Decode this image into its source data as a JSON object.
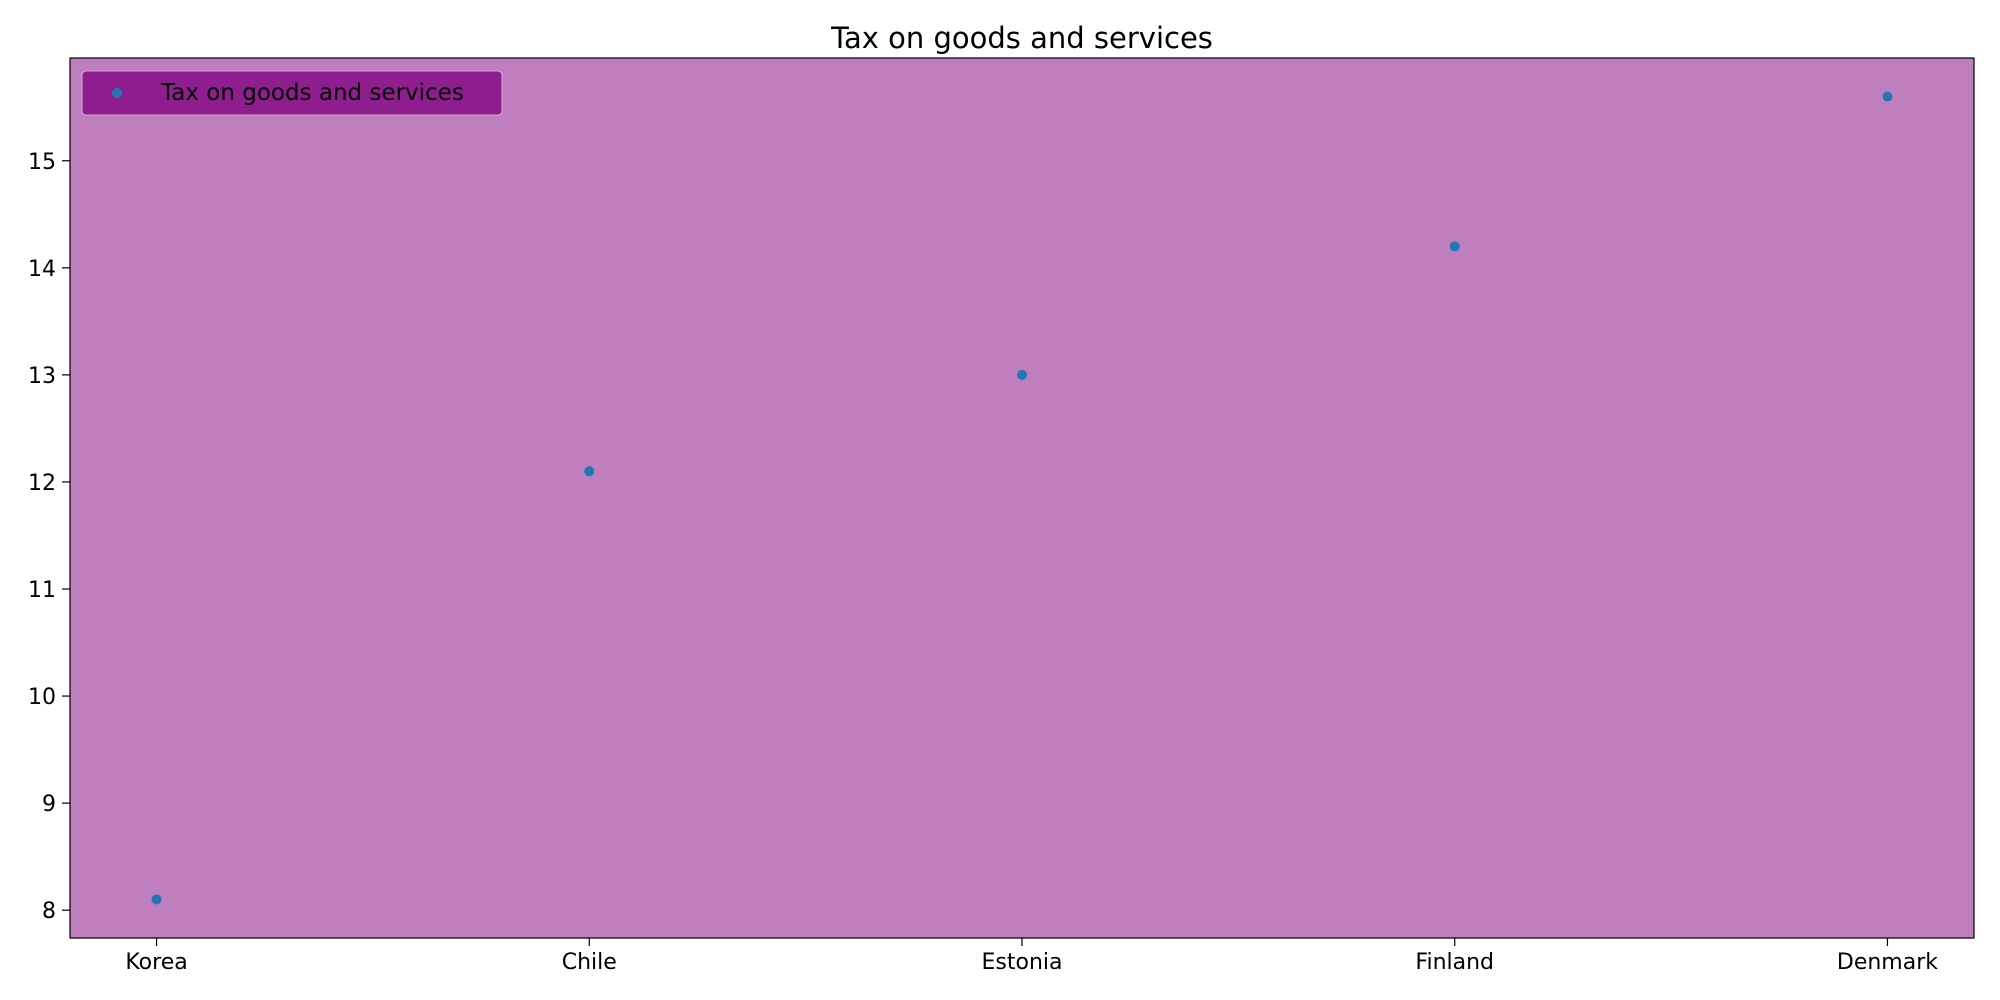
{
  "chart_data": {
    "type": "scatter",
    "title": "Tax on goods and services",
    "xlabel": "",
    "ylabel": "",
    "categories": [
      "Korea",
      "Chile",
      "Estonia",
      "Finland",
      "Denmark"
    ],
    "series": [
      {
        "name": "Tax on goods and services",
        "values": [
          8.1,
          12.1,
          13.0,
          14.2,
          15.6
        ]
      }
    ],
    "ylim": [
      7.74,
      15.96
    ],
    "yticks": [
      "8",
      "9",
      "10",
      "11",
      "12",
      "13",
      "14",
      "15"
    ],
    "grid": false,
    "legend": "top-left",
    "colors": {
      "plot_background": "#bf7fbf",
      "legend_background": "#8e1d8e",
      "marker": "#1f77b4",
      "axis": "#000000",
      "page_background": "#ffffff"
    }
  }
}
